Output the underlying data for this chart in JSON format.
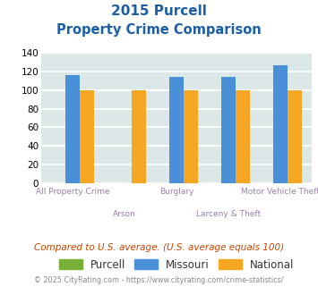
{
  "title_line1": "2015 Purcell",
  "title_line2": "Property Crime Comparison",
  "categories": [
    "All Property Crime",
    "Arson",
    "Burglary",
    "Larceny & Theft",
    "Motor Vehicle Theft"
  ],
  "purcell": [
    0,
    0,
    0,
    0,
    0
  ],
  "missouri": [
    116,
    0,
    114,
    114,
    127
  ],
  "national": [
    100,
    100,
    100,
    100,
    100
  ],
  "purcell_color": "#78b135",
  "missouri_color": "#4a90d9",
  "national_color": "#f5a623",
  "ylim": [
    0,
    140
  ],
  "yticks": [
    0,
    20,
    40,
    60,
    80,
    100,
    120,
    140
  ],
  "background_color": "#dce8e8",
  "grid_color": "#ffffff",
  "title_color": "#1a5fa8",
  "xlabel_color": "#9b7fa8",
  "legend_labels": [
    "Purcell",
    "Missouri",
    "National"
  ],
  "footnote1": "Compared to U.S. average. (U.S. average equals 100)",
  "footnote2": "© 2025 CityRating.com - https://www.cityrating.com/crime-statistics/",
  "footnote1_color": "#cc4400",
  "footnote2_color": "#888888",
  "bar_width": 0.28
}
